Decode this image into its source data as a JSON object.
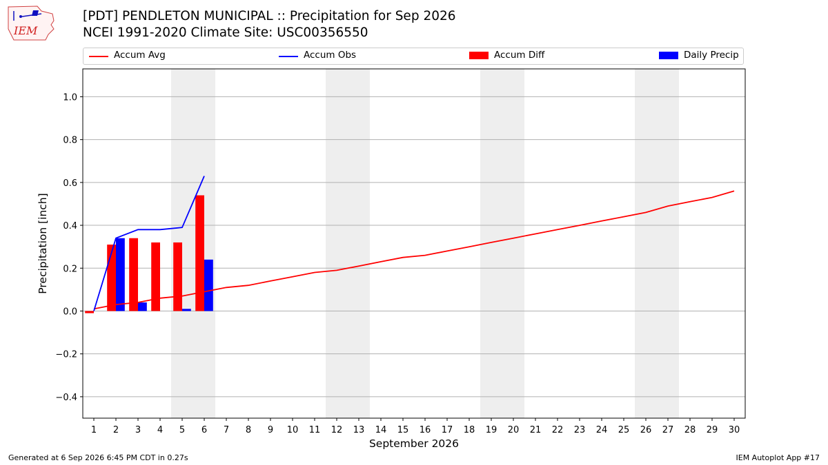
{
  "title": "[PDT] PENDLETON MUNICIPAL :: Precipitation for Sep 2026",
  "subtitle": "NCEI 1991-2020 Climate Site: USC00356550",
  "logo_text": "IEM",
  "footer": {
    "left": "Generated at 6 Sep 2026 6:45 PM CDT in 0.27s",
    "right": "IEM Autoplot App #17"
  },
  "colors": {
    "avg": "#ff0000",
    "obs": "#0000ff",
    "diff": "#ff0000",
    "daily": "#0000ff",
    "weekend": "#eeeeee",
    "grid": "#b0b0b0"
  },
  "chart_data": {
    "type": "bar",
    "xlabel": "September 2026",
    "ylabel": "Precipitation [inch]",
    "xlim": [
      0.5,
      30.5
    ],
    "ylim": [
      -0.5,
      1.13
    ],
    "yticks": [
      -0.4,
      -0.2,
      0.0,
      0.2,
      0.4,
      0.6,
      0.8,
      1.0
    ],
    "ytick_labels": [
      "−0.4",
      "−0.2",
      "0.0",
      "0.2",
      "0.4",
      "0.6",
      "0.8",
      "1.0"
    ],
    "grid": "horizontal",
    "legend_position": "top",
    "weekend_days": [
      5,
      6,
      12,
      13,
      19,
      20,
      26,
      27
    ],
    "days": [
      1,
      2,
      3,
      4,
      5,
      6,
      7,
      8,
      9,
      10,
      11,
      12,
      13,
      14,
      15,
      16,
      17,
      18,
      19,
      20,
      21,
      22,
      23,
      24,
      25,
      26,
      27,
      28,
      29,
      30
    ],
    "series": [
      {
        "name": "Accum Avg",
        "kind": "line",
        "x": [
          1,
          2,
          3,
          4,
          5,
          6,
          7,
          8,
          9,
          10,
          11,
          12,
          13,
          14,
          15,
          16,
          17,
          18,
          19,
          20,
          21,
          22,
          23,
          24,
          25,
          26,
          27,
          28,
          29,
          30
        ],
        "values": [
          0.01,
          0.03,
          0.04,
          0.06,
          0.07,
          0.09,
          0.11,
          0.12,
          0.14,
          0.16,
          0.18,
          0.19,
          0.21,
          0.23,
          0.25,
          0.26,
          0.28,
          0.3,
          0.32,
          0.34,
          0.36,
          0.38,
          0.4,
          0.42,
          0.44,
          0.46,
          0.49,
          0.51,
          0.53,
          0.56
        ]
      },
      {
        "name": "Accum Obs",
        "kind": "line",
        "x": [
          1,
          2,
          3,
          4,
          5,
          6
        ],
        "values": [
          0.0,
          0.34,
          0.38,
          0.38,
          0.39,
          0.63
        ]
      },
      {
        "name": "Accum Diff",
        "kind": "bar",
        "x": [
          1,
          2,
          3,
          4,
          5,
          6
        ],
        "values": [
          -0.01,
          0.31,
          0.34,
          0.32,
          0.32,
          0.54
        ]
      },
      {
        "name": "Daily Precip",
        "kind": "bar",
        "x": [
          1,
          2,
          3,
          4,
          5,
          6
        ],
        "values": [
          0.0,
          0.34,
          0.04,
          0.0,
          0.01,
          0.24
        ]
      }
    ]
  }
}
